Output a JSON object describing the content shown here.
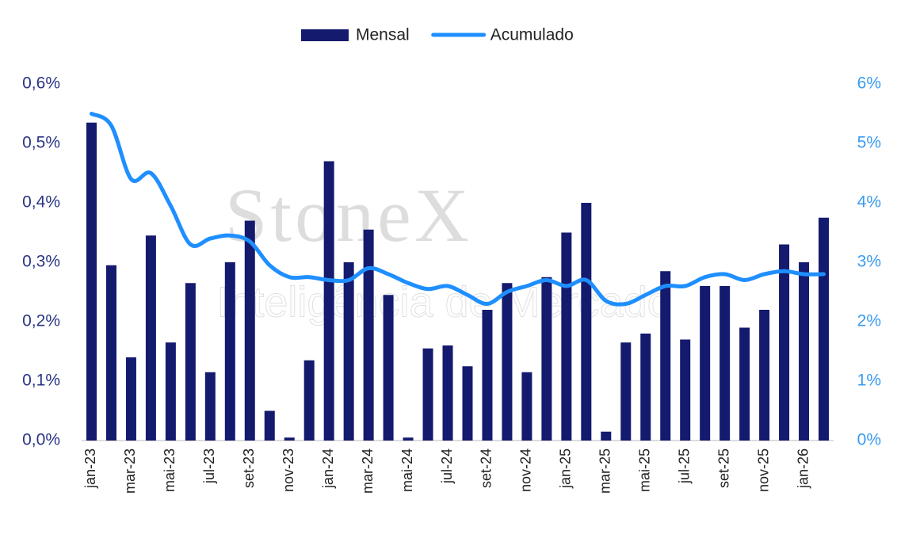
{
  "chart_data": {
    "type": "bar-line",
    "watermark": [
      "StoneX",
      "Inteligência de Mercado"
    ],
    "categories": [
      "jan-23",
      null,
      "mar-23",
      null,
      "mai-23",
      null,
      "jul-23",
      null,
      "set-23",
      null,
      "nov-23",
      null,
      "jan-24",
      null,
      "mar-24",
      null,
      "mai-24",
      null,
      "jul-24",
      null,
      "set-24",
      null,
      "nov-24",
      null,
      "jan-25",
      null,
      "mar-25",
      null,
      "mai-25",
      null,
      "jul-25",
      null,
      "set-25",
      null,
      "nov-25",
      null,
      "jan-26",
      null
    ],
    "series": [
      {
        "name": "Mensal",
        "type": "bar",
        "color": "#141a6e",
        "values": [
          0.535,
          0.295,
          0.14,
          0.345,
          0.165,
          0.265,
          0.115,
          0.3,
          0.37,
          0.05,
          0.005,
          0.135,
          0.47,
          0.3,
          0.355,
          0.245,
          0.005,
          0.155,
          0.16,
          0.125,
          0.22,
          0.265,
          0.115,
          0.275,
          0.35,
          0.4,
          0.015,
          0.165,
          0.18,
          0.285,
          0.17,
          0.26,
          0.26,
          0.19,
          0.22,
          0.33,
          0.3,
          0.375
        ]
      },
      {
        "name": "Acumulado",
        "type": "line",
        "axis": "y2",
        "color": "#1f8fff",
        "values": [
          5.5,
          5.3,
          4.4,
          4.5,
          3.95,
          3.3,
          3.4,
          3.45,
          3.35,
          2.95,
          2.75,
          2.75,
          2.7,
          2.7,
          2.9,
          2.8,
          2.65,
          2.55,
          2.6,
          2.45,
          2.3,
          2.5,
          2.6,
          2.7,
          2.6,
          2.7,
          2.35,
          2.3,
          2.45,
          2.6,
          2.6,
          2.75,
          2.8,
          2.7,
          2.8,
          2.85,
          2.8,
          2.8
        ]
      }
    ],
    "ylim": [
      0,
      0.6
    ],
    "yticks": [
      {
        "value": 0,
        "label": "0,0%"
      },
      {
        "value": 0.1,
        "label": "0,1%"
      },
      {
        "value": 0.2,
        "label": "0,2%"
      },
      {
        "value": 0.3,
        "label": "0,3%"
      },
      {
        "value": 0.4,
        "label": "0,4%"
      },
      {
        "value": 0.5,
        "label": "0,5%"
      },
      {
        "value": 0.6,
        "label": "0,6%"
      }
    ],
    "y2lim": [
      0,
      6
    ],
    "y2ticks": [
      {
        "value": 0,
        "label": "0%"
      },
      {
        "value": 1,
        "label": "1%"
      },
      {
        "value": 2,
        "label": "2%"
      },
      {
        "value": 3,
        "label": "3%"
      },
      {
        "value": 4,
        "label": "4%"
      },
      {
        "value": 5,
        "label": "5%"
      },
      {
        "value": 6,
        "label": "6%"
      }
    ],
    "grid": false,
    "legend": "top"
  }
}
